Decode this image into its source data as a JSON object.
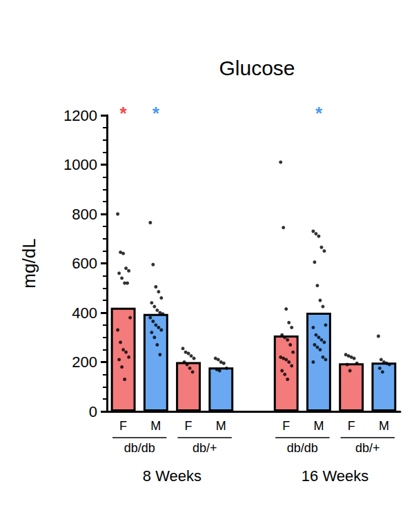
{
  "chart_data": {
    "type": "bar",
    "title": "Glucose",
    "y_label": "mg/dL",
    "categories": [
      "F",
      "M",
      "F",
      "M",
      null,
      "F",
      "M",
      "F",
      "M"
    ],
    "strain": [
      "db/db",
      "db/db",
      "db/+",
      "db/+",
      null,
      "db/db",
      "db/db",
      "db/+",
      "db/+"
    ],
    "timepoint": [
      "8 Weeks",
      "8 Weeks",
      "8 Weeks",
      "8 Weeks",
      null,
      "16 Weeks",
      "16 Weeks",
      "16 Weeks",
      "16 Weeks"
    ],
    "values": [
      420,
      395,
      200,
      178,
      null,
      308,
      400,
      195,
      198
    ],
    "colors": [
      "#f47b7b",
      "#6aa9f2",
      "#f47b7b",
      "#6aa9f2",
      null,
      "#f47b7b",
      "#6aa9f2",
      "#f47b7b",
      "#6aa9f2"
    ],
    "points": [
      [
        800,
        645,
        640,
        580,
        570,
        560,
        540,
        520,
        520,
        380,
        330,
        280,
        250,
        240,
        220,
        210,
        180,
        130
      ],
      [
        765,
        595,
        505,
        485,
        460,
        440,
        425,
        410,
        400,
        395,
        380,
        365,
        350,
        340,
        330,
        320,
        300,
        270,
        230
      ],
      [
        255,
        240,
        235,
        225,
        215,
        200,
        190,
        175,
        160
      ],
      [
        215,
        210,
        200,
        195,
        175,
        170,
        165
      ],
      null,
      [
        1010,
        745,
        415,
        360,
        340,
        310,
        300,
        290,
        270,
        240,
        220,
        215,
        210,
        200,
        185,
        165,
        150,
        130
      ],
      [
        730,
        720,
        710,
        665,
        650,
        605,
        510,
        450,
        425,
        350,
        340,
        310,
        300,
        290,
        280,
        270,
        260,
        250,
        220,
        210,
        200
      ],
      [
        230,
        225,
        220,
        215,
        195,
        190,
        165
      ],
      [
        305,
        210,
        200,
        195,
        190,
        175,
        160
      ]
    ],
    "annotations": [
      "*",
      "*",
      null,
      null,
      null,
      null,
      "*",
      null,
      null
    ],
    "annotation_colors": [
      "#f04848",
      "#4a9af0",
      null,
      null,
      null,
      null,
      "#4a9af0",
      null,
      null
    ],
    "ylim": [
      0,
      1200
    ],
    "yticks": [
      0,
      200,
      400,
      600,
      800,
      1000,
      1200
    ],
    "grid": false
  }
}
